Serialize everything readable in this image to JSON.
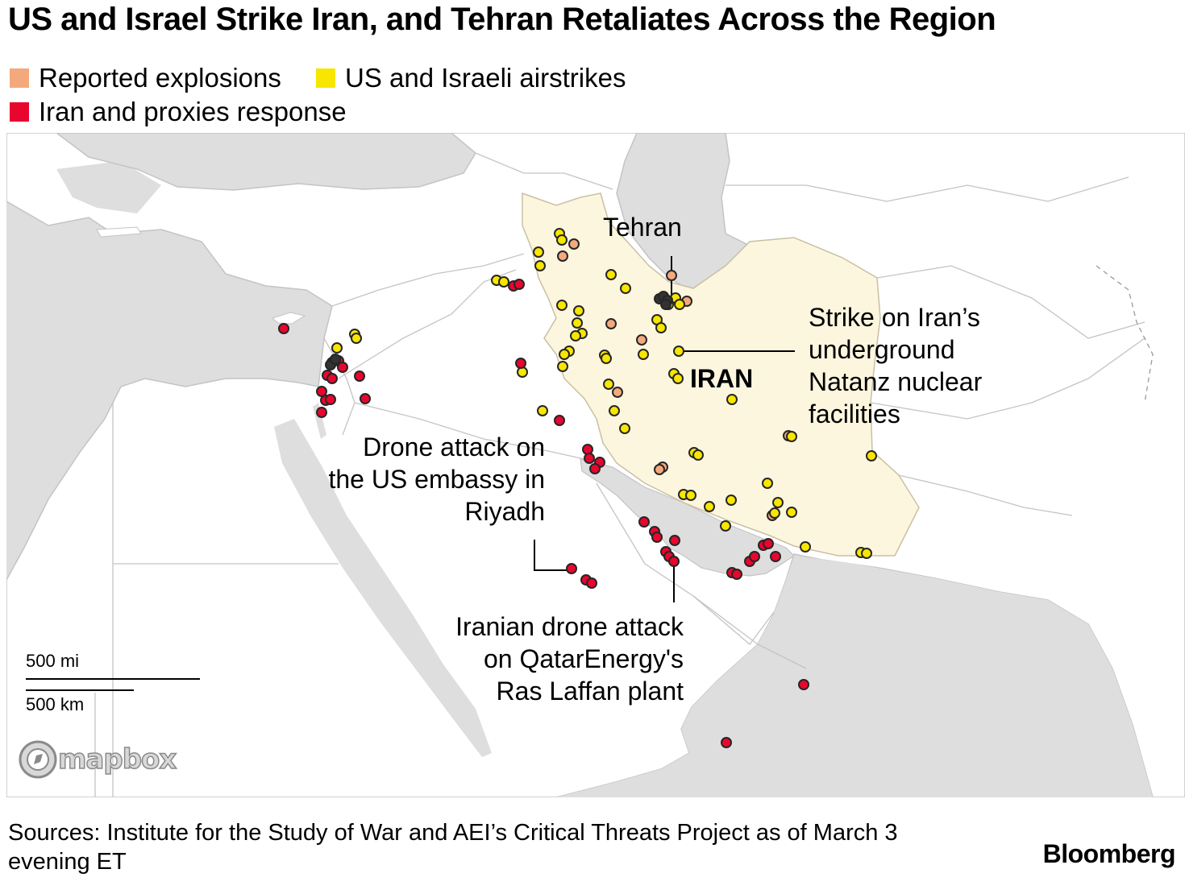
{
  "title": "US and Israel Strike Iran, and Tehran Retaliates Across the Region",
  "legend": [
    {
      "label": "Reported explosions",
      "color": "#f4a97c"
    },
    {
      "label": "US and Israeli airstrikes",
      "color": "#f7e600"
    },
    {
      "label": "Iran and proxies response",
      "color": "#e8062f"
    }
  ],
  "colors": {
    "land": "#ffffff",
    "sea": "#dedede",
    "iran_fill": "#fdf6df",
    "borders": "#c4c4c4",
    "marker_outline": "#262626"
  },
  "labels": {
    "tehran": "Tehran",
    "iran": "IRAN",
    "natanz": [
      "Strike on Iran’s",
      "underground",
      "Natanz nuclear",
      "facilities"
    ],
    "riyadh": [
      "Drone attack on",
      "the US embassy in",
      "Riyadh"
    ],
    "qatar": [
      "Iranian drone attack",
      "on QatarEnergy's",
      "Ras Laffan plant"
    ]
  },
  "scale": {
    "mi": "500 mi",
    "km": "500 km"
  },
  "attribution": "mapbox",
  "source": "Sources: Institute for the Study of War and AEI’s Critical Threats Project as of March 3 evening ET",
  "brand": "Bloomberg"
}
